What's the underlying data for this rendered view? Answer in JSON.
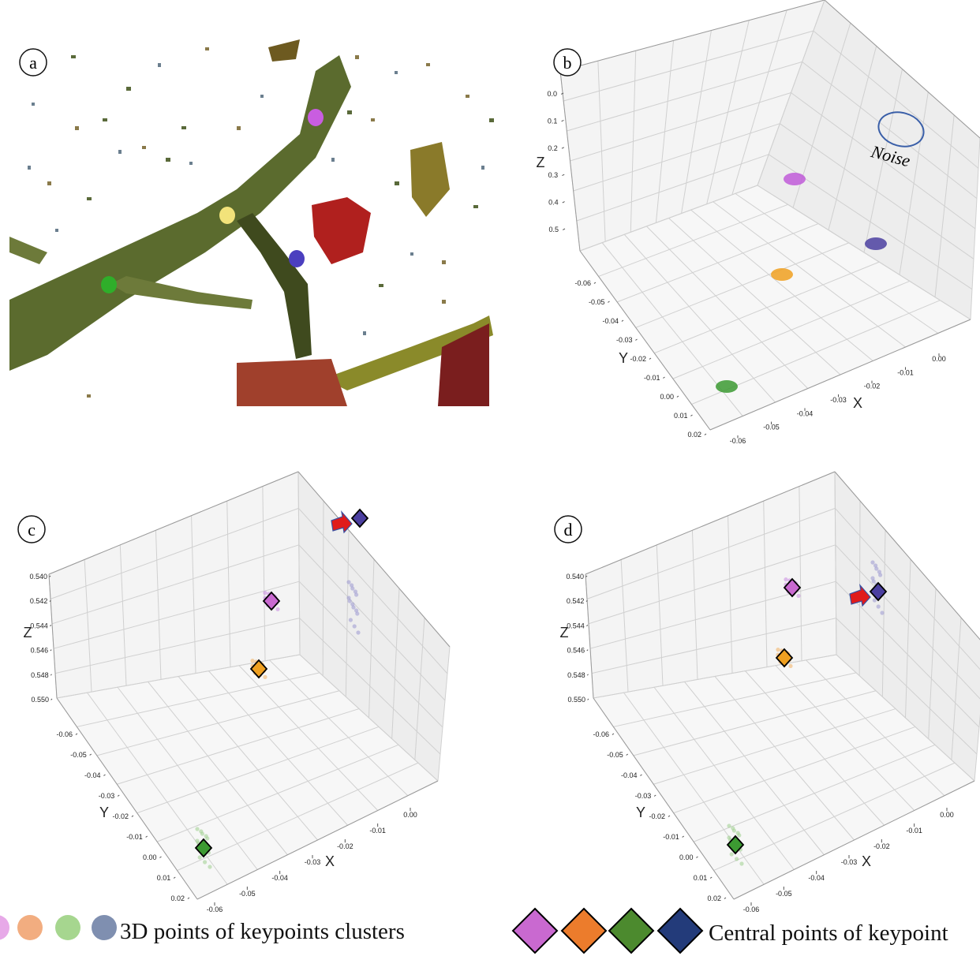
{
  "colors": {
    "magenta": "#c05ad8",
    "orange": "#f0a020",
    "green": "#3c9a32",
    "indigo": "#4b3fa0",
    "pale_orange": "#f2ad80",
    "pale_green": "#a6d68f",
    "pale_blue": "#7f8fb0",
    "diamond_magenta": "#c969d0",
    "diamond_orange": "#ec7c2c",
    "diamond_green": "#4c8a2e",
    "diamond_navy": "#233b7a",
    "arrow_red": "#e01b1b",
    "noise_ellipse": "#3a5fa8"
  },
  "panels": {
    "a": {
      "label": "a"
    },
    "b": {
      "label": "b",
      "noise_label": "Noise"
    },
    "c": {
      "label": "c"
    },
    "d": {
      "label": "d"
    }
  },
  "legend": {
    "clusters_label": "3D points of keypoints clusters",
    "centers_label": "Central points of keypoint"
  },
  "chart_data": [
    {
      "panel": "a",
      "type": "other",
      "description_visible": "point cloud of a branch",
      "markers": [
        {
          "color": "magenta"
        },
        {
          "color": "yellow"
        },
        {
          "color": "indigo"
        },
        {
          "color": "green"
        }
      ]
    },
    {
      "panel": "b",
      "type": "scatter",
      "xlabel": "X",
      "ylabel": "Y",
      "zlabel": "Z",
      "xticks": [
        "-0.06",
        "-0.05",
        "-0.04",
        "-0.03",
        "-0.02",
        "-0.01",
        "0.00"
      ],
      "yticks": [
        "-0.06",
        "-0.05",
        "-0.04",
        "-0.03",
        "-0.02",
        "-0.01",
        "0.00",
        "0.01",
        "0.02"
      ],
      "zticks": [
        "0.0",
        "0.1",
        "0.2",
        "0.3",
        "0.4",
        "0.5"
      ],
      "series": [
        {
          "color": "magenta",
          "x": -0.03,
          "y": -0.04,
          "z": 0.3
        },
        {
          "color": "orange",
          "x": -0.04,
          "y": -0.02,
          "z": 0.5
        },
        {
          "color": "indigo",
          "x": -0.01,
          "y": -0.03,
          "z": 0.5
        },
        {
          "color": "green",
          "x": -0.06,
          "y": 0.01,
          "z": 0.5
        }
      ]
    },
    {
      "panel": "c",
      "type": "scatter",
      "xlabel": "X",
      "ylabel": "Y",
      "zlabel": "Z",
      "xticks": [
        "-0.06",
        "-0.05",
        "-0.04",
        "-0.03",
        "-0.02",
        "-0.01",
        "0.00"
      ],
      "yticks": [
        "-0.06",
        "-0.05",
        "-0.04",
        "-0.03",
        "-0.02",
        "-0.01",
        "0.00",
        "0.01",
        "0.02"
      ],
      "zticks": [
        "0.540",
        "0.542",
        "0.544",
        "0.546",
        "0.548",
        "0.550"
      ],
      "clusters": [
        {
          "color": "magenta",
          "center": [
            -0.03,
            -0.045,
            0.542
          ]
        },
        {
          "color": "orange",
          "center": [
            -0.04,
            -0.03,
            0.548
          ]
        },
        {
          "color": "indigo",
          "center": [
            -0.005,
            -0.055,
            0.54
          ]
        },
        {
          "color": "green",
          "center": [
            -0.06,
            0.01,
            0.55
          ]
        }
      ]
    },
    {
      "panel": "d",
      "type": "scatter",
      "xlabel": "X",
      "ylabel": "Y",
      "zlabel": "Z",
      "xticks": [
        "-0.06",
        "-0.05",
        "-0.04",
        "-0.03",
        "-0.02",
        "-0.01",
        "0.00"
      ],
      "yticks": [
        "-0.06",
        "-0.05",
        "-0.04",
        "-0.03",
        "-0.02",
        "-0.01",
        "0.00",
        "0.01",
        "0.02"
      ],
      "zticks": [
        "0.540",
        "0.542",
        "0.544",
        "0.546",
        "0.548",
        "0.550"
      ],
      "clusters": [
        {
          "color": "magenta",
          "center": [
            -0.03,
            -0.045,
            0.542
          ]
        },
        {
          "color": "orange",
          "center": [
            -0.04,
            -0.03,
            0.548
          ]
        },
        {
          "color": "indigo",
          "center": [
            -0.01,
            -0.04,
            0.542
          ]
        },
        {
          "color": "green",
          "center": [
            -0.06,
            0.01,
            0.55
          ]
        }
      ]
    }
  ]
}
